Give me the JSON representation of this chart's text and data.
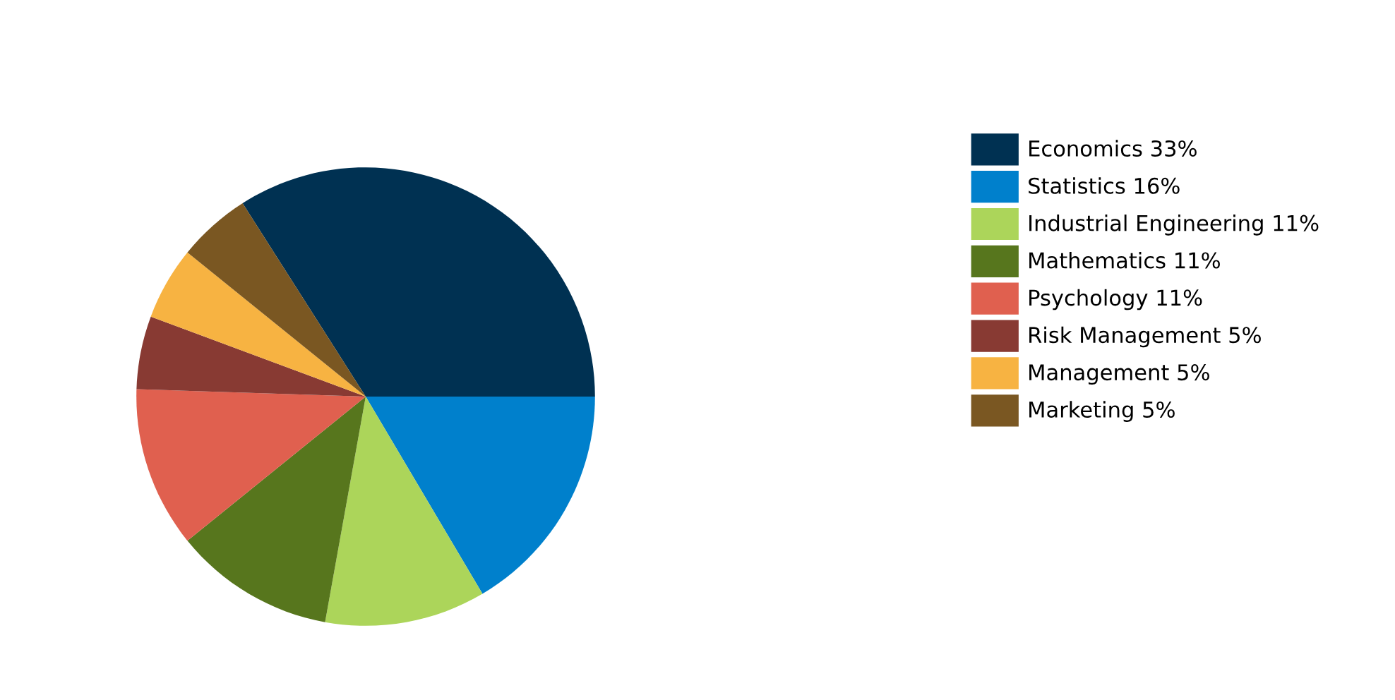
{
  "chart_data": {
    "type": "pie",
    "categories": [
      "Economics",
      "Statistics",
      "Industrial Engineering",
      "Mathematics",
      "Psychology",
      "Risk Management",
      "Management",
      "Marketing"
    ],
    "values": [
      33,
      16,
      11,
      11,
      11,
      5,
      5,
      5
    ],
    "value_labels": [
      "33%",
      "16%",
      "11%",
      "11%",
      "11%",
      "5%",
      "5%",
      "5%"
    ],
    "colors": [
      "#003152",
      "#0080cc",
      "#acd55a",
      "#57761d",
      "#e0604f",
      "#883a33",
      "#f7b342",
      "#7a5722"
    ],
    "legend": "right"
  }
}
